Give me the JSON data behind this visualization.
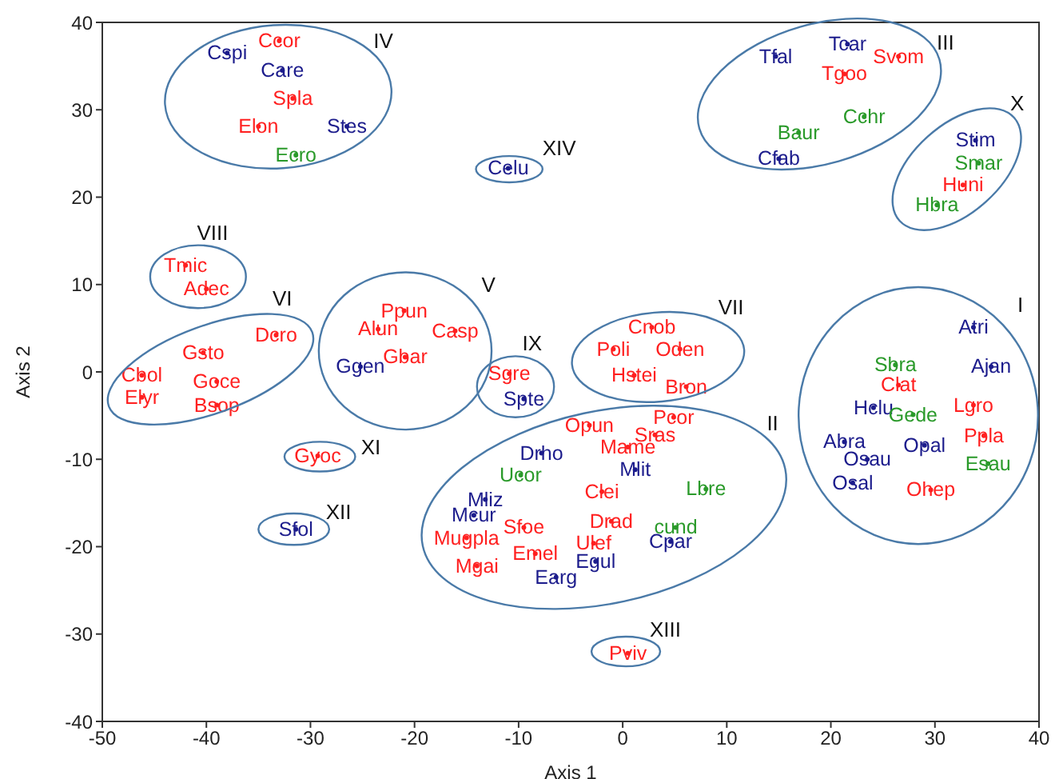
{
  "chart_data": {
    "type": "scatter",
    "xlabel": "Axis 1",
    "ylabel": "Axis 2",
    "xlim": [
      -50,
      40
    ],
    "ylim": [
      -40,
      40
    ],
    "xticks": [
      -50,
      -40,
      -30,
      -20,
      -10,
      0,
      10,
      20,
      30,
      40
    ],
    "yticks": [
      -40,
      -30,
      -20,
      -10,
      0,
      10,
      20,
      30,
      40
    ],
    "series": [
      {
        "color": "#ff2020",
        "x": [
          -33.0,
          -31.7,
          -35.0,
          -42.0,
          -40.0,
          -21.0,
          -23.5,
          -16.1,
          -33.3,
          -40.3,
          -46.2,
          -46.2,
          -39.0,
          -39.0,
          -20.9,
          -10.9,
          -29.3,
          -9.5,
          -15.0,
          -8.4,
          -14.0,
          2.8,
          -0.9,
          5.5,
          1.1,
          6.1,
          -3.2,
          4.9,
          3.1,
          0.5,
          -2.0,
          -1.1,
          -2.8,
          0.5,
          26.5,
          33.7,
          34.7,
          29.6,
          21.3,
          26.5,
          32.7
        ],
        "values": [
          37.9,
          31.3,
          28.1,
          12.2,
          9.5,
          7.0,
          4.9,
          4.7,
          4.2,
          2.2,
          -0.4,
          -2.9,
          -1.1,
          -3.8,
          1.7,
          -0.2,
          -9.6,
          -17.8,
          -19.0,
          -20.8,
          -22.2,
          5.1,
          2.6,
          2.6,
          -0.4,
          -1.7,
          -6.1,
          -5.2,
          -7.2,
          -8.6,
          -13.7,
          -17.1,
          -19.6,
          -32.2,
          -1.5,
          -3.8,
          -7.3,
          -13.5,
          34.1,
          36.1,
          21.4
        ],
        "value_labels": [
          "Ccor",
          "Spla",
          "Elon",
          "Tmic",
          "Adec",
          "Ppun",
          "Alun",
          "Casp",
          "Dcro",
          "Gsto",
          "Cbol",
          "Elyr",
          "Goce",
          "Bsop",
          "Gbar",
          "Sgre",
          "Gyoc",
          "Sfoe",
          "Mugpla",
          "Emel",
          "Mgai",
          "Cnob",
          "Poli",
          "Oden",
          "Hstei",
          "Bron",
          "Opun",
          "Pcor",
          "Sras",
          "Mame",
          "Clei",
          "Drad",
          "Ulef",
          "Pviv",
          "Clat",
          "Lgro",
          "Ppla",
          "Ohep",
          "Tgoo",
          "Svom",
          "Huni"
        ]
      },
      {
        "color": "#1c1c8c",
        "x": [
          -38.0,
          -32.7,
          -26.5,
          -11.0,
          -25.2,
          -9.5,
          -31.4,
          -7.8,
          -13.2,
          -14.3,
          -6.4,
          1.2,
          -2.6,
          4.6,
          33.7,
          35.4,
          24.1,
          21.3,
          23.5,
          29.0,
          22.1,
          14.7,
          21.6,
          15.0,
          33.9
        ],
        "values": [
          36.5,
          34.5,
          28.1,
          23.3,
          0.6,
          -3.1,
          -18.0,
          -9.3,
          -14.6,
          -16.4,
          -23.5,
          -11.2,
          -21.7,
          -19.4,
          5.1,
          0.6,
          -4.1,
          -8.0,
          -10.0,
          -8.4,
          -12.7,
          36.1,
          37.5,
          24.4,
          26.5
        ],
        "value_labels": [
          "Cspi",
          "Care",
          "Stes",
          "Celu",
          "Ggen",
          "Spte",
          "Sfol",
          "Drho",
          "Mliz",
          "Mcur",
          "Earg",
          "Mlit",
          "Egul",
          "Cpar",
          "Atri",
          "Ajan",
          "Hclu",
          "Abra",
          "Osau",
          "Opal",
          "Osal",
          "Tfal",
          "Tcar",
          "Cfab",
          "Stim"
        ]
      },
      {
        "color": "#2a9a2a",
        "x": [
          -31.4,
          -9.8,
          8.0,
          5.1,
          26.2,
          27.9,
          35.1,
          23.2,
          16.9,
          34.2,
          30.2
        ],
        "values": [
          24.8,
          -11.8,
          -13.4,
          -17.8,
          0.8,
          -4.9,
          -10.5,
          29.2,
          27.4,
          23.9,
          19.1
        ],
        "value_labels": [
          "Ecro",
          "Ucor",
          "Lbre",
          "cund",
          "Sbra",
          "Gede",
          "Esau",
          "Cchr",
          "Baur",
          "Smar",
          "Hbra"
        ]
      }
    ],
    "annotations": [
      "I",
      "II",
      "III",
      "IV",
      "V",
      "VI",
      "VII",
      "VIII",
      "IX",
      "X",
      "XI",
      "XII",
      "XIII",
      "XIV"
    ]
  }
}
